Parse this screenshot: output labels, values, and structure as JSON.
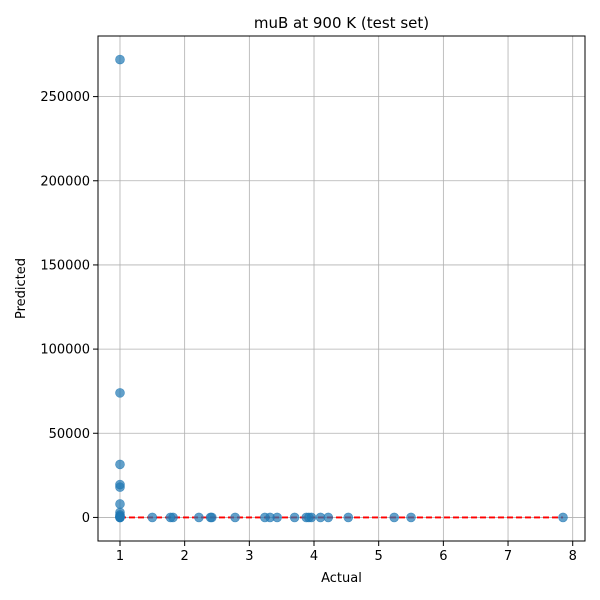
{
  "chart_data": {
    "type": "scatter",
    "title": "muB at 900 K (test set)",
    "xlabel": "Actual",
    "ylabel": "Predicted",
    "xlim": [
      0.66,
      8.19
    ],
    "ylim": [
      -14000,
      286000
    ],
    "xticks": [
      1,
      2,
      3,
      4,
      5,
      6,
      7,
      8
    ],
    "yticks": [
      0,
      50000,
      100000,
      150000,
      200000,
      250000
    ],
    "grid": true,
    "point_color": "#1f77b4",
    "reference_line": {
      "style": "dashed",
      "color": "#ff0000",
      "x": [
        1.0,
        7.85
      ],
      "y": [
        1.0,
        7.85
      ]
    },
    "points": {
      "x": [
        1.0,
        1.0,
        1.0,
        1.0,
        1.0,
        1.0,
        1.0,
        1.0,
        1.0,
        1.0,
        1.0,
        1.0,
        1.0,
        1.0,
        1.5,
        1.78,
        1.82,
        2.22,
        2.4,
        2.42,
        2.78,
        3.24,
        3.32,
        3.43,
        3.7,
        3.88,
        3.92,
        3.96,
        4.1,
        4.22,
        4.53,
        5.24,
        5.5,
        7.85
      ],
      "y": [
        272000,
        74000,
        31500,
        19500,
        18000,
        8000,
        3000,
        1500,
        800,
        300,
        100,
        0,
        0,
        0,
        0,
        0,
        0,
        0,
        0,
        0,
        0,
        0,
        0,
        0,
        0,
        0,
        0,
        0,
        0,
        0,
        0,
        0,
        0,
        0
      ]
    }
  }
}
